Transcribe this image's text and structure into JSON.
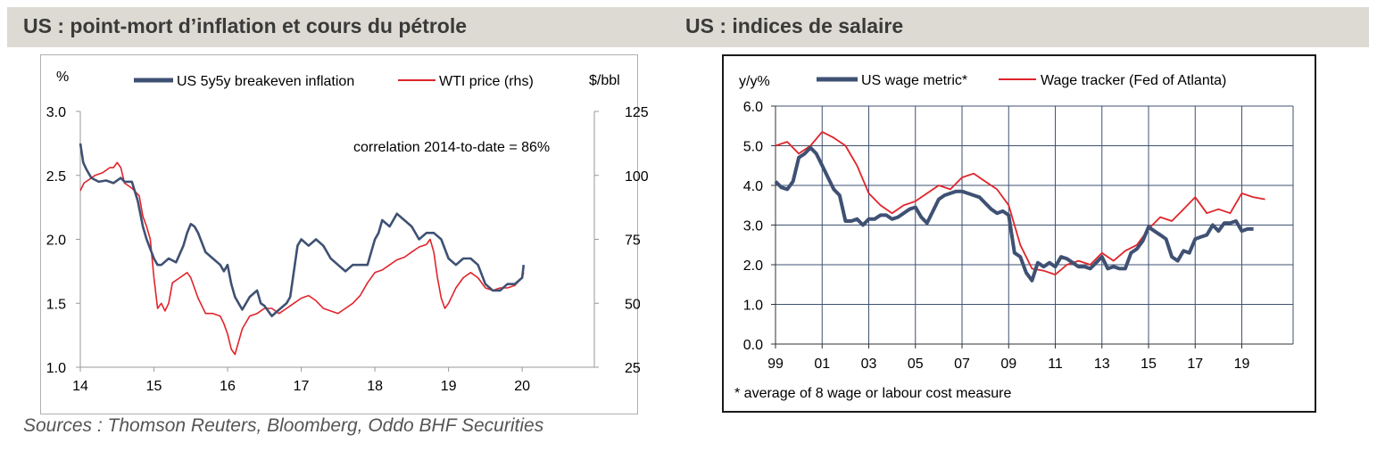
{
  "header": {
    "left_title": "US : point-mort d’inflation et cours du pétrole",
    "right_title": "US : indices de salaire"
  },
  "footer": {
    "sources": "Sources : Thomson Reuters, Bloomberg, Oddo BHF Securities"
  },
  "colors": {
    "blue": "#3f5173",
    "red": "#e0242b",
    "grid": "#3f5173",
    "title_bg": "#dcdad2"
  },
  "chart_data": [
    {
      "type": "line",
      "y_unit_left": "%",
      "y_unit_right": "$/bbl",
      "annotation": "correlation 2014-to-date = 86%",
      "x_ticks": [
        "14",
        "15",
        "16",
        "17",
        "18",
        "19",
        "20"
      ],
      "xlim": [
        2014,
        2020.98
      ],
      "ylim_left": [
        1.0,
        3.0
      ],
      "ylim_right": [
        25,
        125
      ],
      "y_ticks_left": [
        "1.0",
        "1.5",
        "2.0",
        "2.5",
        "3.0"
      ],
      "y_ticks_right": [
        "25",
        "50",
        "75",
        "100",
        "125"
      ],
      "grid": false,
      "legend_position": "top",
      "series": [
        {
          "name": "US 5y5y breakeven inflation",
          "axis": "left",
          "x": [
            2014.0,
            2014.04,
            2014.08,
            2014.15,
            2014.25,
            2014.35,
            2014.45,
            2014.55,
            2014.6,
            2014.7,
            2014.78,
            2014.85,
            2014.9,
            2015.0,
            2015.05,
            2015.1,
            2015.2,
            2015.3,
            2015.4,
            2015.45,
            2015.5,
            2015.55,
            2015.6,
            2015.7,
            2015.8,
            2015.9,
            2015.95,
            2016.0,
            2016.05,
            2016.1,
            2016.15,
            2016.2,
            2016.3,
            2016.4,
            2016.45,
            2016.5,
            2016.6,
            2016.7,
            2016.8,
            2016.85,
            2016.9,
            2016.95,
            2017.0,
            2017.1,
            2017.2,
            2017.3,
            2017.4,
            2017.5,
            2017.6,
            2017.7,
            2017.8,
            2017.9,
            2018.0,
            2018.05,
            2018.1,
            2018.2,
            2018.3,
            2018.4,
            2018.5,
            2018.6,
            2018.7,
            2018.8,
            2018.9,
            2019.0,
            2019.1,
            2019.2,
            2019.3,
            2019.4,
            2019.5,
            2019.6,
            2019.7,
            2019.8,
            2019.9,
            2020.0,
            2020.02
          ],
          "values": [
            2.75,
            2.6,
            2.55,
            2.48,
            2.45,
            2.46,
            2.44,
            2.48,
            2.45,
            2.45,
            2.3,
            2.1,
            2.0,
            1.85,
            1.8,
            1.8,
            1.85,
            1.82,
            1.95,
            2.05,
            2.12,
            2.1,
            2.05,
            1.9,
            1.85,
            1.8,
            1.75,
            1.8,
            1.65,
            1.55,
            1.5,
            1.45,
            1.55,
            1.6,
            1.5,
            1.48,
            1.4,
            1.45,
            1.5,
            1.55,
            1.75,
            1.95,
            2.0,
            1.95,
            2.0,
            1.95,
            1.85,
            1.8,
            1.75,
            1.8,
            1.8,
            1.8,
            2.0,
            2.05,
            2.15,
            2.1,
            2.2,
            2.15,
            2.1,
            2.0,
            2.05,
            2.05,
            2.0,
            1.85,
            1.8,
            1.85,
            1.85,
            1.8,
            1.65,
            1.6,
            1.6,
            1.65,
            1.65,
            1.7,
            1.8
          ]
        },
        {
          "name": "WTI price (rhs)",
          "axis": "right",
          "x": [
            2014.0,
            2014.05,
            2014.1,
            2014.2,
            2014.3,
            2014.4,
            2014.45,
            2014.5,
            2014.55,
            2014.6,
            2014.7,
            2014.8,
            2014.85,
            2014.9,
            2014.95,
            2015.0,
            2015.05,
            2015.1,
            2015.15,
            2015.2,
            2015.25,
            2015.35,
            2015.45,
            2015.5,
            2015.6,
            2015.7,
            2015.8,
            2015.9,
            2015.95,
            2016.0,
            2016.05,
            2016.1,
            2016.15,
            2016.2,
            2016.3,
            2016.4,
            2016.5,
            2016.6,
            2016.7,
            2016.8,
            2016.9,
            2017.0,
            2017.1,
            2017.2,
            2017.3,
            2017.4,
            2017.5,
            2017.6,
            2017.7,
            2017.8,
            2017.9,
            2018.0,
            2018.1,
            2018.2,
            2018.3,
            2018.4,
            2018.5,
            2018.6,
            2018.7,
            2018.75,
            2018.8,
            2018.85,
            2018.9,
            2018.95,
            2019.0,
            2019.1,
            2019.2,
            2019.3,
            2019.4,
            2019.5,
            2019.6,
            2019.7,
            2019.8,
            2019.9,
            2020.0,
            2020.02
          ],
          "values": [
            94,
            97,
            98,
            100,
            101,
            103,
            103,
            105,
            103,
            97,
            95,
            92,
            84,
            80,
            75,
            60,
            48,
            50,
            47,
            50,
            58,
            60,
            62,
            60,
            52,
            46,
            46,
            45,
            42,
            38,
            32,
            30,
            35,
            40,
            45,
            46,
            48,
            48,
            46,
            48,
            50,
            52,
            53,
            51,
            48,
            47,
            46,
            48,
            50,
            53,
            58,
            62,
            63,
            65,
            67,
            68,
            70,
            72,
            73,
            75,
            70,
            60,
            52,
            48,
            50,
            56,
            60,
            62,
            60,
            56,
            55,
            56,
            56,
            57,
            60,
            62
          ]
        }
      ]
    },
    {
      "type": "line",
      "y_unit": "y/y%",
      "footnote": "* average of 8 wage or labour cost measure",
      "x_ticks": [
        "99",
        "01",
        "03",
        "05",
        "07",
        "09",
        "11",
        "13",
        "15",
        "17",
        "19"
      ],
      "xlim": [
        1999,
        2021.2
      ],
      "ylim": [
        0,
        6
      ],
      "y_ticks": [
        "0.0",
        "1.0",
        "2.0",
        "3.0",
        "4.0",
        "5.0",
        "6.0"
      ],
      "grid": true,
      "legend_position": "top",
      "series": [
        {
          "name": "US wage metric*",
          "x": [
            1999.0,
            1999.25,
            1999.5,
            1999.75,
            2000.0,
            2000.25,
            2000.5,
            2000.75,
            2001.0,
            2001.25,
            2001.5,
            2001.75,
            2002.0,
            2002.25,
            2002.5,
            2002.75,
            2003.0,
            2003.25,
            2003.5,
            2003.75,
            2004.0,
            2004.25,
            2004.5,
            2004.75,
            2005.0,
            2005.25,
            2005.5,
            2005.75,
            2006.0,
            2006.25,
            2006.5,
            2006.75,
            2007.0,
            2007.25,
            2007.5,
            2007.75,
            2008.0,
            2008.25,
            2008.5,
            2008.75,
            2009.0,
            2009.25,
            2009.5,
            2009.75,
            2010.0,
            2010.25,
            2010.5,
            2010.75,
            2011.0,
            2011.25,
            2011.5,
            2011.75,
            2012.0,
            2012.25,
            2012.5,
            2012.75,
            2013.0,
            2013.25,
            2013.5,
            2013.75,
            2014.0,
            2014.25,
            2014.5,
            2014.75,
            2015.0,
            2015.25,
            2015.5,
            2015.75,
            2016.0,
            2016.25,
            2016.5,
            2016.75,
            2017.0,
            2017.25,
            2017.5,
            2017.75,
            2018.0,
            2018.25,
            2018.5,
            2018.75,
            2019.0,
            2019.25,
            2019.5
          ],
          "values": [
            4.1,
            3.95,
            3.9,
            4.1,
            4.7,
            4.8,
            4.95,
            4.8,
            4.5,
            4.2,
            3.9,
            3.75,
            3.1,
            3.1,
            3.15,
            3.0,
            3.15,
            3.15,
            3.25,
            3.25,
            3.15,
            3.2,
            3.3,
            3.4,
            3.45,
            3.2,
            3.05,
            3.35,
            3.65,
            3.75,
            3.8,
            3.85,
            3.85,
            3.8,
            3.75,
            3.7,
            3.55,
            3.4,
            3.3,
            3.35,
            3.25,
            2.3,
            2.2,
            1.8,
            1.6,
            2.05,
            1.95,
            2.05,
            1.95,
            2.2,
            2.15,
            2.05,
            1.95,
            1.95,
            1.9,
            2.05,
            2.2,
            1.9,
            1.95,
            1.9,
            1.9,
            2.3,
            2.4,
            2.6,
            2.95,
            2.85,
            2.75,
            2.65,
            2.2,
            2.1,
            2.35,
            2.3,
            2.65,
            2.7,
            2.75,
            3.0,
            2.85,
            3.05,
            3.05,
            3.1,
            2.85,
            2.9,
            2.9
          ]
        },
        {
          "name": "Wage tracker (Fed of Atlanta)",
          "x": [
            1999.0,
            1999.5,
            2000.0,
            2000.5,
            2001.0,
            2001.5,
            2002.0,
            2002.5,
            2003.0,
            2003.5,
            2004.0,
            2004.5,
            2005.0,
            2005.5,
            2006.0,
            2006.5,
            2007.0,
            2007.5,
            2008.0,
            2008.5,
            2009.0,
            2009.5,
            2010.0,
            2010.5,
            2011.0,
            2011.5,
            2012.0,
            2012.5,
            2013.0,
            2013.5,
            2014.0,
            2014.5,
            2015.0,
            2015.5,
            2016.0,
            2016.5,
            2017.0,
            2017.5,
            2018.0,
            2018.5,
            2019.0,
            2019.5,
            2020.0
          ],
          "values": [
            5.0,
            5.1,
            4.8,
            5.0,
            5.35,
            5.2,
            5.0,
            4.5,
            3.8,
            3.5,
            3.3,
            3.5,
            3.6,
            3.8,
            4.0,
            3.9,
            4.2,
            4.3,
            4.1,
            3.9,
            3.5,
            2.5,
            1.9,
            1.85,
            1.75,
            2.0,
            2.1,
            2.0,
            2.3,
            2.1,
            2.35,
            2.5,
            2.9,
            3.2,
            3.1,
            3.4,
            3.7,
            3.3,
            3.4,
            3.3,
            3.8,
            3.7,
            3.65
          ]
        }
      ]
    }
  ]
}
